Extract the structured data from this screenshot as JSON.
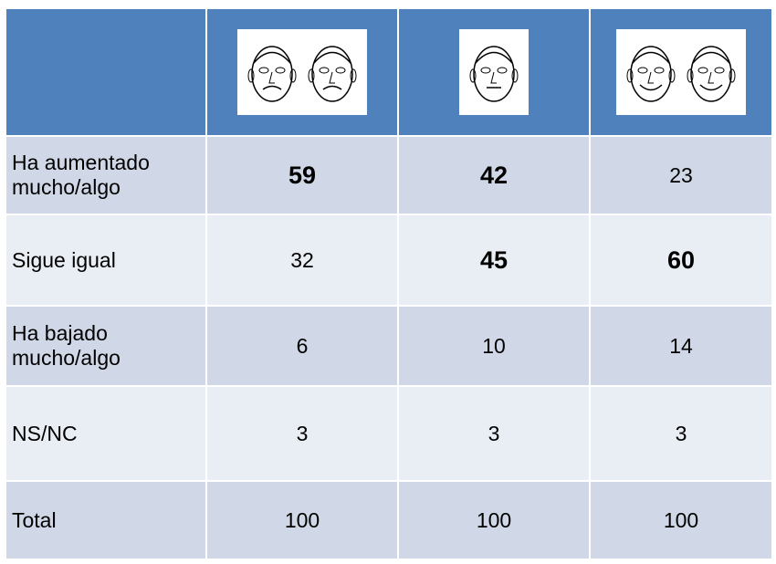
{
  "table": {
    "rows": [
      [
        "Ha aumentado mucho/algo",
        59,
        42,
        23
      ],
      [
        "Sigue igual",
        32,
        45,
        60
      ],
      [
        "Ha bajado mucho/algo",
        6,
        10,
        14
      ],
      [
        "NS/NC",
        3,
        3,
        3
      ],
      [
        "Total",
        100,
        100,
        100
      ]
    ]
  }
}
